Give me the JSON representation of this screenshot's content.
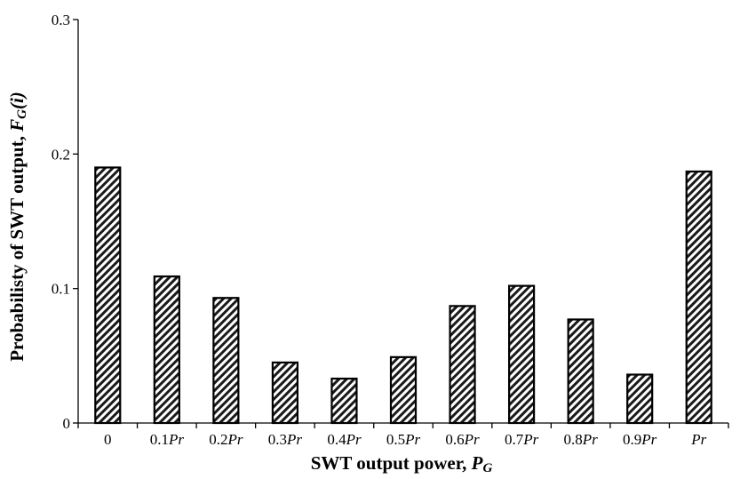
{
  "chart_data": {
    "type": "bar",
    "xlabel": {
      "main": "SWT output power, ",
      "var": "P",
      "sub": "G"
    },
    "ylabel": {
      "main": "Probabilisty of SWT output, ",
      "var": "F",
      "sub": "G",
      "arg": "(i)"
    },
    "ylim": [
      0,
      0.3
    ],
    "yticks": [
      {
        "value": 0,
        "label": "0"
      },
      {
        "value": 0.1,
        "label": "0.1"
      },
      {
        "value": 0.2,
        "label": "0.2"
      },
      {
        "value": 0.3,
        "label": "0.3"
      }
    ],
    "categories": [
      {
        "num": "0",
        "unit": ""
      },
      {
        "num": "0.1",
        "unit": "Pr"
      },
      {
        "num": "0.2",
        "unit": "Pr"
      },
      {
        "num": "0.3",
        "unit": "Pr"
      },
      {
        "num": "0.4",
        "unit": "Pr"
      },
      {
        "num": "0.5",
        "unit": "Pr"
      },
      {
        "num": "0.6",
        "unit": "Pr"
      },
      {
        "num": "0.7",
        "unit": "Pr"
      },
      {
        "num": "0.8",
        "unit": "Pr"
      },
      {
        "num": "0.9",
        "unit": "Pr"
      },
      {
        "num": "",
        "unit": "Pr"
      }
    ],
    "values": [
      0.19,
      0.109,
      0.093,
      0.045,
      0.033,
      0.049,
      0.087,
      0.102,
      0.077,
      0.036,
      0.187
    ],
    "pattern": "diagonal-hatch",
    "bar_fill": "#ffffff",
    "bar_stroke": "#000000",
    "grid": false,
    "legend": "none"
  }
}
